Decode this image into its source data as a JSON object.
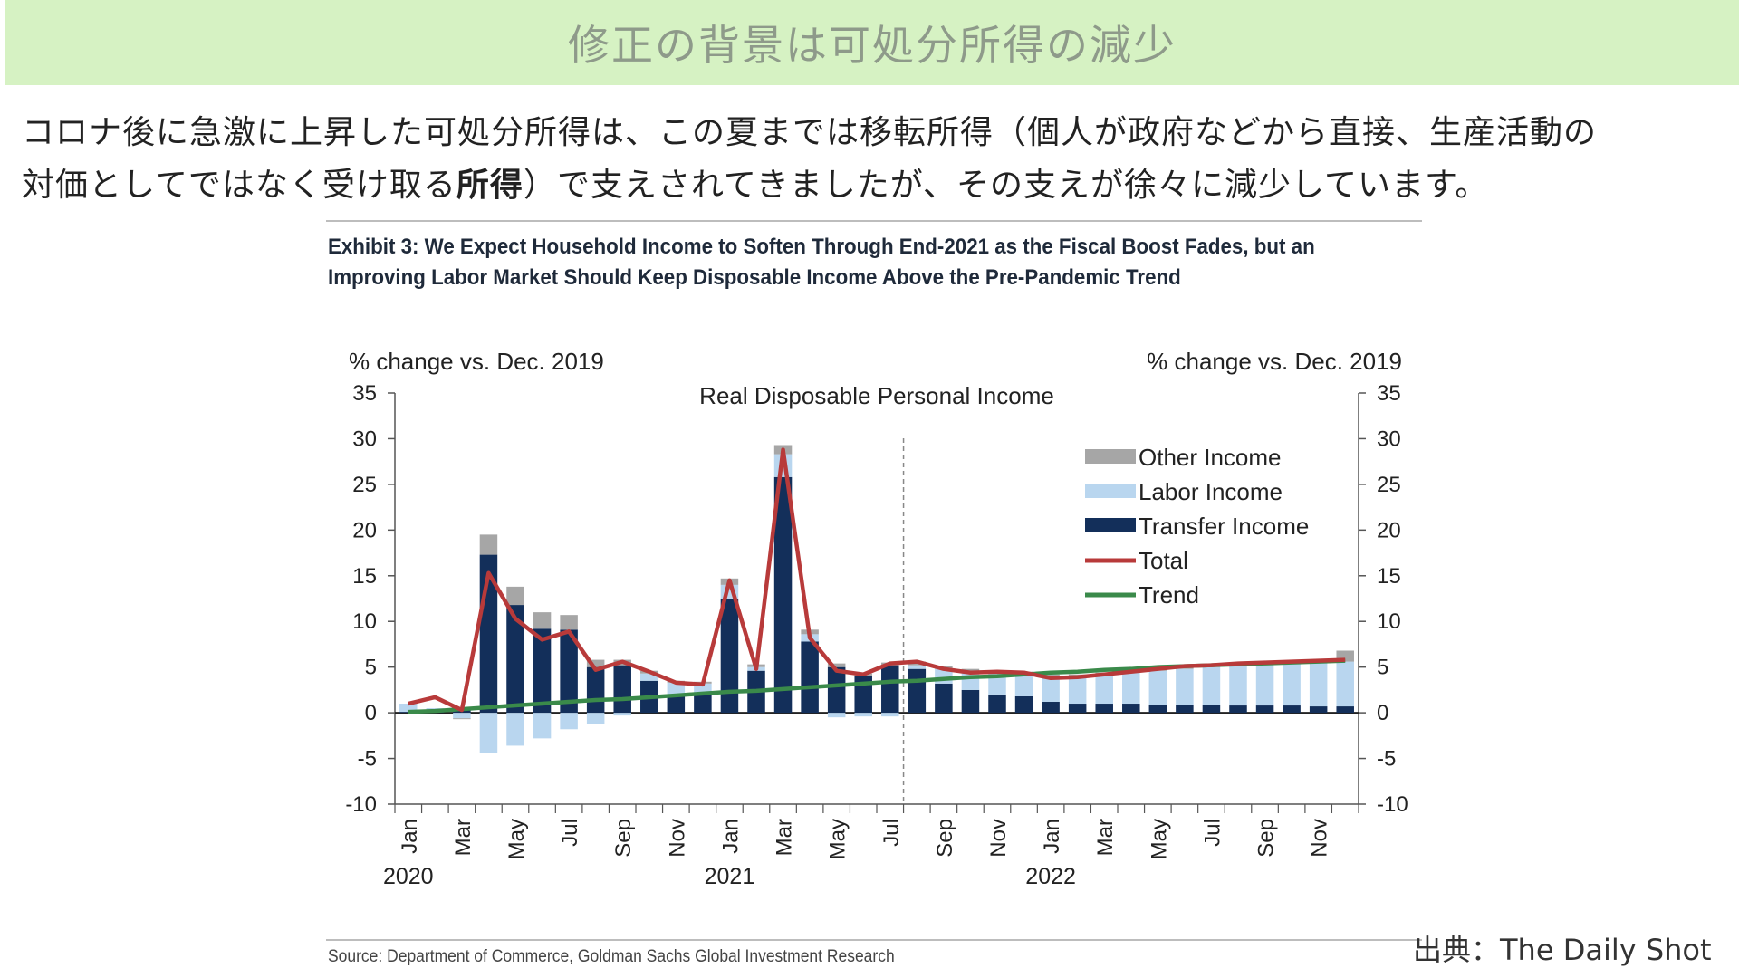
{
  "slide": {
    "title": "修正の背景は可処分所得の減少",
    "body_line1": "コロナ後に急激に上昇した可処分所得は、この夏までは移転所得（個人が政府などから直接、生産活動の",
    "body_line2_pre": "対価としてではなく受け取る",
    "body_line2_bold": "所得",
    "body_line2_post": "）で支えされてきましたが、その支えが徐々に減少しています。",
    "credit": "出典：The Daily Shot"
  },
  "exhibit": {
    "title_line1": "Exhibit 3: We Expect Household Income to Soften Through End-2021 as the Fiscal Boost Fades, but an",
    "title_line2": "Improving Labor Market Should Keep Disposable Income Above the Pre-Pandemic Trend",
    "source": "Source: Department of Commerce, Goldman Sachs Global Investment Research"
  },
  "colors": {
    "banner": "#d6f2c3",
    "other_income": "#a6a6a6",
    "labor_income": "#b9d6ef",
    "transfer_income": "#132f5a",
    "total": "#b83a3a",
    "trend": "#3a8a4a"
  },
  "chart_data": {
    "type": "bar",
    "title": "Real Disposable Personal Income",
    "ylabel_left": "% change vs. Dec. 2019",
    "ylabel_right": "% change vs. Dec. 2019",
    "ylim": [
      -10,
      35
    ],
    "yticks": [
      35,
      30,
      25,
      20,
      15,
      10,
      5,
      0,
      -5,
      -10
    ],
    "x_tick_labels": [
      "Jan",
      "Mar",
      "May",
      "Jul",
      "Sep",
      "Nov",
      "Jan",
      "Mar",
      "May",
      "Jul",
      "Sep",
      "Nov",
      "Jan",
      "Mar",
      "May",
      "Jul",
      "Sep",
      "Nov"
    ],
    "year_labels": [
      "2020",
      "2021",
      "2022"
    ],
    "categories": [
      "Jan 2020",
      "Feb 2020",
      "Mar 2020",
      "Apr 2020",
      "May 2020",
      "Jun 2020",
      "Jul 2020",
      "Aug 2020",
      "Sep 2020",
      "Oct 2020",
      "Nov 2020",
      "Dec 2020",
      "Jan 2021",
      "Feb 2021",
      "Mar 2021",
      "Apr 2021",
      "May 2021",
      "Jun 2021",
      "Jul 2021",
      "Aug 2021",
      "Sep 2021",
      "Oct 2021",
      "Nov 2021",
      "Dec 2021",
      "Jan 2022",
      "Feb 2022",
      "Mar 2022",
      "Apr 2022",
      "May 2022",
      "Jun 2022",
      "Jul 2022",
      "Aug 2022",
      "Sep 2022",
      "Oct 2022",
      "Nov 2022",
      "Dec 2022"
    ],
    "stacked": true,
    "forecast_start": "Aug 2021",
    "legend_position": "right",
    "series": [
      {
        "name": "Transfer Income",
        "values": [
          0.1,
          0.1,
          0.3,
          17.3,
          11.8,
          9.2,
          9.1,
          5.0,
          5.2,
          3.5,
          2.0,
          2.0,
          12.5,
          4.6,
          25.8,
          7.8,
          5.0,
          4.0,
          5.2,
          4.8,
          3.2,
          2.5,
          2.0,
          1.8,
          1.2,
          1.0,
          1.0,
          1.0,
          0.9,
          0.9,
          0.9,
          0.8,
          0.8,
          0.8,
          0.7,
          0.7
        ]
      },
      {
        "name": "Labor Income",
        "values": [
          0.9,
          0.4,
          -0.6,
          -4.4,
          -3.6,
          -2.8,
          -1.8,
          -1.2,
          -0.3,
          0.8,
          1.3,
          1.2,
          1.5,
          0.4,
          2.5,
          0.8,
          -0.5,
          -0.4,
          -0.4,
          0.4,
          1.6,
          2.0,
          2.3,
          2.5,
          2.8,
          3.0,
          3.2,
          3.4,
          3.7,
          3.9,
          4.1,
          4.3,
          4.4,
          4.6,
          4.8,
          4.9
        ]
      },
      {
        "name": "Other Income",
        "values": [
          0.0,
          0.0,
          -0.1,
          2.2,
          2.0,
          1.8,
          1.6,
          0.8,
          0.6,
          0.3,
          0.2,
          0.2,
          0.7,
          0.3,
          1.0,
          0.5,
          0.4,
          0.3,
          0.3,
          0.4,
          0.3,
          0.3,
          0.3,
          0.2,
          0.2,
          0.2,
          0.2,
          0.2,
          0.2,
          0.3,
          0.3,
          0.3,
          0.3,
          0.3,
          0.3,
          1.2
        ]
      },
      {
        "name": "Total",
        "type": "line",
        "values": [
          1.0,
          1.7,
          0.3,
          15.3,
          10.3,
          8.0,
          8.9,
          4.7,
          5.6,
          4.5,
          3.3,
          3.1,
          14.5,
          4.8,
          28.8,
          8.2,
          4.6,
          4.2,
          5.4,
          5.6,
          4.8,
          4.4,
          4.5,
          4.4,
          3.8,
          3.9,
          4.2,
          4.5,
          4.8,
          5.1,
          5.2,
          5.4,
          5.5,
          5.6,
          5.7,
          5.8
        ]
      },
      {
        "name": "Trend",
        "type": "line",
        "values": [
          0.1,
          0.2,
          0.4,
          0.6,
          0.8,
          1.0,
          1.2,
          1.4,
          1.5,
          1.7,
          1.9,
          2.1,
          2.3,
          2.4,
          2.6,
          2.8,
          3.0,
          3.2,
          3.4,
          3.5,
          3.7,
          3.9,
          4.0,
          4.2,
          4.4,
          4.5,
          4.7,
          4.8,
          5.0,
          5.1,
          5.2,
          5.3,
          5.4,
          5.5,
          5.6,
          5.7
        ]
      }
    ]
  }
}
